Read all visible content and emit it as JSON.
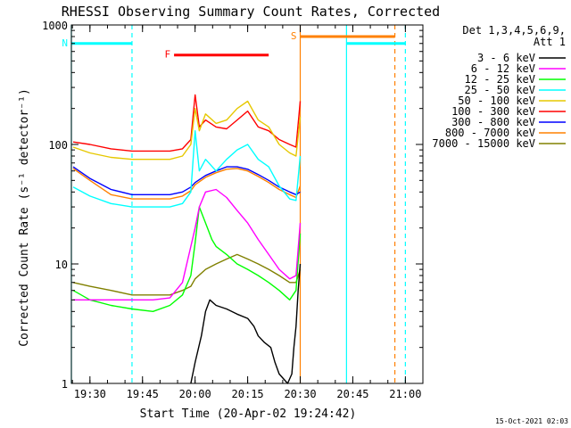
{
  "chart_data": {
    "type": "line",
    "title": "RHESSI Observing Summary Count Rates, Corrected",
    "xlabel": "Start Time (20-Apr-02 19:24:42)",
    "ylabel": "Corrected Count Rate (s⁻¹ detector⁻¹)",
    "yscale": "log",
    "ylim": [
      1,
      1000
    ],
    "xlim": [
      19.4117,
      21.0833
    ],
    "grid": false,
    "legend_placement": "right",
    "y_ticks": [
      {
        "label": "1",
        "value": 1
      },
      {
        "label": "10",
        "value": 10
      },
      {
        "label": "100",
        "value": 100
      },
      {
        "label": "1000",
        "value": 1000
      }
    ],
    "x_ticks": [
      {
        "label": "19:30",
        "value": 19.5
      },
      {
        "label": "19:45",
        "value": 19.75
      },
      {
        "label": "20:00",
        "value": 20.0
      },
      {
        "label": "20:15",
        "value": 20.25
      },
      {
        "label": "20:30",
        "value": 20.5
      },
      {
        "label": "20:45",
        "value": 20.75
      },
      {
        "label": "21:00",
        "value": 21.0
      }
    ],
    "legend_header": [
      "Det 1,3,4,5,6,9,",
      "Att 1"
    ],
    "series": [
      {
        "name": "3 - 6 keV",
        "color": "#000000",
        "x": [
          19.98,
          20.0,
          20.03,
          20.05,
          20.07,
          20.1,
          20.15,
          20.2,
          20.25,
          20.28,
          20.3,
          20.33,
          20.36,
          20.38,
          20.4,
          20.44,
          20.46,
          20.47,
          20.48,
          20.49,
          20.5
        ],
        "y": [
          1.0,
          1.5,
          2.5,
          4.0,
          5.0,
          4.5,
          4.2,
          3.8,
          3.5,
          3.0,
          2.5,
          2.2,
          2.0,
          1.5,
          1.2,
          1.0,
          1.2,
          2.0,
          3.0,
          6.0,
          10.0
        ]
      },
      {
        "name": "6 - 12 keV",
        "color": "#ff00ff",
        "x": [
          19.42,
          19.5,
          19.6,
          19.7,
          19.8,
          19.88,
          19.94,
          19.98,
          20.0,
          20.02,
          20.05,
          20.1,
          20.15,
          20.2,
          20.25,
          20.3,
          20.35,
          20.4,
          20.45,
          20.48,
          20.5
        ],
        "y": [
          5.0,
          5.0,
          5.0,
          5.0,
          5.0,
          5.2,
          7.0,
          14.0,
          20.0,
          30.0,
          40.0,
          42.0,
          36.0,
          28.0,
          22.0,
          16.0,
          12.0,
          9.0,
          7.5,
          8.0,
          22.0
        ]
      },
      {
        "name": "12 - 25 keV",
        "color": "#00ff00",
        "x": [
          19.42,
          19.5,
          19.6,
          19.7,
          19.8,
          19.88,
          19.94,
          19.98,
          20.0,
          20.02,
          20.05,
          20.08,
          20.1,
          20.15,
          20.2,
          20.25,
          20.3,
          20.35,
          20.4,
          20.45,
          20.48,
          20.5
        ],
        "y": [
          6.0,
          5.0,
          4.5,
          4.2,
          4.0,
          4.5,
          5.5,
          8.0,
          15.0,
          30.0,
          22.0,
          16.0,
          14.0,
          12.0,
          10.0,
          9.0,
          8.0,
          7.0,
          6.0,
          5.0,
          6.0,
          18.0
        ]
      },
      {
        "name": "25 - 50 keV",
        "color": "#00ffff",
        "x": [
          19.42,
          19.5,
          19.6,
          19.7,
          19.8,
          19.88,
          19.94,
          19.98,
          20.0,
          20.02,
          20.05,
          20.1,
          20.15,
          20.2,
          20.25,
          20.3,
          20.35,
          20.4,
          20.45,
          20.48,
          20.5
        ],
        "y": [
          44.0,
          37.0,
          32.0,
          30.0,
          30.0,
          30.0,
          32.0,
          40.0,
          130.0,
          60.0,
          75.0,
          60.0,
          75.0,
          90.0,
          100.0,
          75.0,
          65.0,
          45.0,
          35.0,
          34.0,
          80.0
        ]
      },
      {
        "name": "50 - 100 keV",
        "color": "#e6c800",
        "x": [
          19.42,
          19.5,
          19.6,
          19.7,
          19.8,
          19.88,
          19.94,
          19.98,
          20.0,
          20.02,
          20.05,
          20.1,
          20.15,
          20.2,
          20.25,
          20.3,
          20.35,
          20.4,
          20.45,
          20.48,
          20.5
        ],
        "y": [
          95.0,
          85.0,
          78.0,
          75.0,
          75.0,
          75.0,
          80.0,
          100.0,
          200.0,
          130.0,
          180.0,
          150.0,
          160.0,
          200.0,
          230.0,
          160.0,
          140.0,
          100.0,
          85.0,
          80.0,
          170.0
        ]
      },
      {
        "name": "100 - 300 keV",
        "color": "#ff0000",
        "x": [
          19.42,
          19.5,
          19.6,
          19.7,
          19.8,
          19.88,
          19.94,
          19.98,
          20.0,
          20.02,
          20.05,
          20.1,
          20.15,
          20.2,
          20.25,
          20.3,
          20.35,
          20.4,
          20.45,
          20.48,
          20.5
        ],
        "y": [
          105.0,
          100.0,
          92.0,
          88.0,
          88.0,
          88.0,
          92.0,
          110.0,
          260.0,
          140.0,
          160.0,
          140.0,
          135.0,
          160.0,
          190.0,
          140.0,
          130.0,
          110.0,
          100.0,
          95.0,
          230.0
        ]
      },
      {
        "name": "300 - 800 keV",
        "color": "#0000ff",
        "x": [
          19.42,
          19.5,
          19.6,
          19.7,
          19.8,
          19.88,
          19.94,
          19.98,
          20.0,
          20.05,
          20.1,
          20.15,
          20.2,
          20.25,
          20.3,
          20.35,
          20.4,
          20.45,
          20.48,
          20.5
        ],
        "y": [
          65.0,
          52.0,
          42.0,
          38.0,
          38.0,
          38.0,
          40.0,
          44.0,
          48.0,
          55.0,
          60.0,
          65.0,
          65.0,
          62.0,
          56.0,
          50.0,
          44.0,
          40.0,
          38.0,
          40.0
        ]
      },
      {
        "name": "800 - 7000 keV",
        "color": "#ff8000",
        "x": [
          19.42,
          19.5,
          19.6,
          19.7,
          19.8,
          19.88,
          19.94,
          19.98,
          20.0,
          20.05,
          20.1,
          20.15,
          20.2,
          20.25,
          20.3,
          20.35,
          20.4,
          20.45,
          20.48,
          20.5
        ],
        "y": [
          63.0,
          50.0,
          38.0,
          35.0,
          35.0,
          35.0,
          37.0,
          41.0,
          46.0,
          53.0,
          58.0,
          62.0,
          63.0,
          60.0,
          54.0,
          48.0,
          42.0,
          38.0,
          36.0,
          45.0
        ]
      },
      {
        "name": "7000 - 15000 keV",
        "color": "#808000",
        "x": [
          19.42,
          19.5,
          19.6,
          19.7,
          19.8,
          19.88,
          19.94,
          19.98,
          20.0,
          20.05,
          20.1,
          20.15,
          20.2,
          20.25,
          20.3,
          20.35,
          20.4,
          20.45,
          20.48,
          20.5
        ],
        "y": [
          7.0,
          6.5,
          6.0,
          5.5,
          5.5,
          5.5,
          6.0,
          6.5,
          7.5,
          9.0,
          10.0,
          11.0,
          12.0,
          11.0,
          10.0,
          9.0,
          8.0,
          7.0,
          7.0,
          9.0
        ]
      }
    ],
    "annotations": [
      {
        "label": "N",
        "color": "#00ffff",
        "x_start": 19.4117,
        "x_end": 19.7,
        "y": 700
      },
      {
        "label": "F",
        "color": "#ff0000",
        "x_start": 19.9,
        "x_end": 20.35,
        "y": 560
      },
      {
        "label": "S",
        "color": "#ff8000",
        "x_start": 20.5,
        "x_end": 20.95,
        "y": 800
      },
      {
        "label": "",
        "color": "#00ffff",
        "x_start": 20.72,
        "x_end": 21.0,
        "y": 700
      }
    ],
    "vertical_lines": [
      {
        "x": 19.4117,
        "color": "#00ffff",
        "style": "solid"
      },
      {
        "x": 19.7,
        "color": "#00ffff",
        "style": "dashed"
      },
      {
        "x": 20.5,
        "color": "#ff8000",
        "style": "solid"
      },
      {
        "x": 20.72,
        "color": "#00ffff",
        "style": "solid"
      },
      {
        "x": 20.95,
        "color": "#ff8000",
        "style": "dashed"
      },
      {
        "x": 21.0,
        "color": "#00ffff",
        "style": "dashed"
      }
    ]
  },
  "footer": {
    "timestamp": "15-Oct-2021 02:03"
  }
}
